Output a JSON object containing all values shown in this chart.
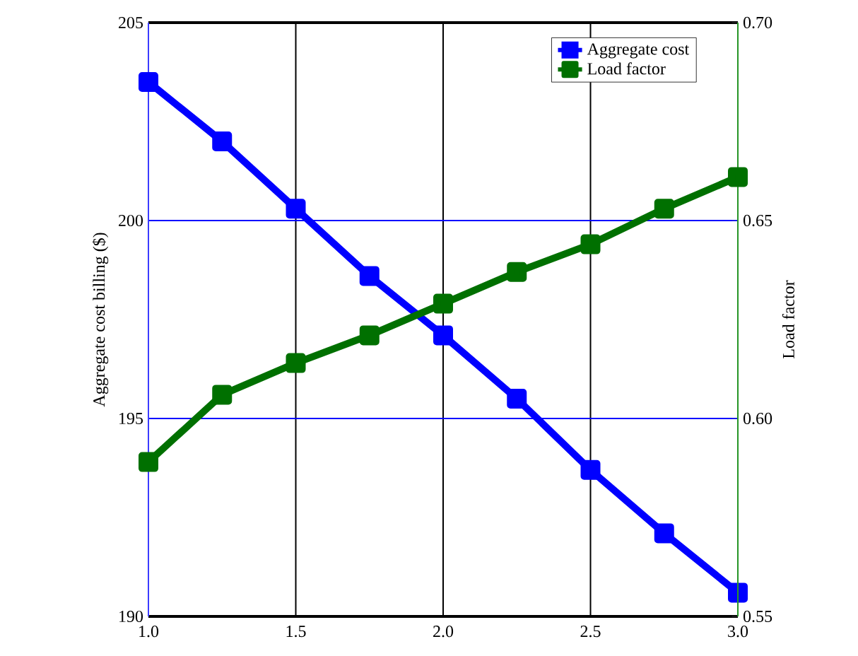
{
  "chart_data": {
    "type": "line",
    "x": [
      1.0,
      1.25,
      1.5,
      1.75,
      2.0,
      2.25,
      2.5,
      2.75,
      3.0
    ],
    "series": [
      {
        "name": "Aggregate cost",
        "color": "#0000ff",
        "values": [
          203.5,
          202.0,
          200.3,
          198.6,
          197.1,
          195.5,
          193.7,
          192.1,
          190.6
        ]
      },
      {
        "name": "Load factor",
        "color": "#007000",
        "axis": "y2",
        "values": [
          0.589,
          0.606,
          0.614,
          0.621,
          0.629,
          0.637,
          0.644,
          0.653,
          0.661
        ]
      }
    ],
    "ylabel": "Aggregate cost billing ($)",
    "y2label": "Load factor",
    "xlim": [
      1.0,
      3.0
    ],
    "xticks": [
      {
        "value": 1.0,
        "label": "1.0"
      },
      {
        "value": 1.5,
        "label": "1.5"
      },
      {
        "value": 2.0,
        "label": "2.0"
      },
      {
        "value": 2.5,
        "label": "2.5"
      },
      {
        "value": 3.0,
        "label": "3.0"
      }
    ],
    "ylim": [
      190,
      205
    ],
    "yticks": [
      190,
      195,
      200,
      205
    ],
    "y2lim": [
      0.55,
      0.7
    ],
    "y2ticks": [
      {
        "value": 0.55,
        "label": "0.55"
      },
      {
        "value": 0.6,
        "label": "0.60"
      },
      {
        "value": 0.65,
        "label": "0.65"
      },
      {
        "value": 0.7,
        "label": "0.70"
      }
    ],
    "grid": true,
    "legend": "top right",
    "marker": "square",
    "line_style": "solid"
  }
}
